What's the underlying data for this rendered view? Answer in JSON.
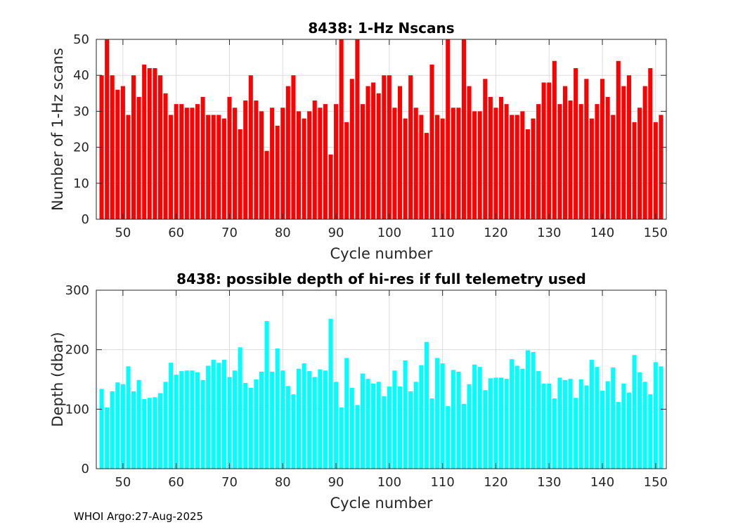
{
  "footer": "WHOI Argo:27-Aug-2025",
  "colors": {
    "nscans_bars": "#ff0000",
    "depth_bars": "#00ffff",
    "axis": "#262626",
    "grid": "#dcdcdc"
  },
  "chart_data": [
    {
      "type": "bar",
      "title": "8438: 1-Hz Nscans",
      "xlabel": "Cycle number",
      "ylabel": "Number of 1-Hz scans",
      "xlim": [
        45,
        152
      ],
      "ylim": [
        0,
        50
      ],
      "xticks": [
        50,
        60,
        70,
        80,
        90,
        100,
        110,
        120,
        130,
        140,
        150
      ],
      "yticks": [
        0,
        10,
        20,
        30,
        40,
        50
      ],
      "grid": true,
      "x_start": 46,
      "values": [
        40,
        50,
        40,
        36,
        37,
        29,
        40,
        34,
        43,
        42,
        42,
        40,
        35,
        29,
        32,
        32,
        31,
        31,
        32,
        34,
        29,
        29,
        29,
        28,
        34,
        31,
        25,
        33,
        40,
        33,
        30,
        19,
        31,
        26,
        31,
        37,
        40,
        30,
        28,
        30,
        33,
        31,
        32,
        18,
        32,
        50,
        27,
        39,
        50,
        32,
        37,
        38,
        35,
        40,
        40,
        31,
        37,
        28,
        40,
        31,
        29,
        24,
        43,
        29,
        28,
        50,
        31,
        31,
        50,
        37,
        30,
        30,
        39,
        34,
        31,
        34,
        32,
        29,
        29,
        30,
        25,
        28,
        32,
        38,
        38,
        44,
        32,
        37,
        33,
        42,
        32,
        39,
        28,
        32,
        39,
        34,
        29,
        44,
        37,
        40,
        27,
        31,
        37,
        42,
        27,
        29
      ]
    },
    {
      "type": "bar",
      "title": "8438: possible depth of hi-res if full telemetry used",
      "xlabel": "Cycle number",
      "ylabel": "Depth (dbar)",
      "xlim": [
        45,
        152
      ],
      "ylim": [
        0,
        300
      ],
      "xticks": [
        50,
        60,
        70,
        80,
        90,
        100,
        110,
        120,
        130,
        140,
        150
      ],
      "yticks": [
        0,
        100,
        200,
        300
      ],
      "grid": true,
      "x_start": 46,
      "values": [
        134,
        103,
        130,
        145,
        142,
        172,
        130,
        149,
        117,
        119,
        120,
        127,
        146,
        178,
        158,
        164,
        165,
        165,
        162,
        149,
        173,
        183,
        178,
        183,
        154,
        165,
        204,
        144,
        136,
        150,
        163,
        248,
        163,
        202,
        165,
        139,
        125,
        168,
        177,
        164,
        154,
        167,
        165,
        252,
        146,
        103,
        186,
        136,
        107,
        160,
        151,
        143,
        146,
        122,
        138,
        165,
        138,
        182,
        130,
        146,
        174,
        213,
        118,
        186,
        177,
        105,
        166,
        163,
        109,
        142,
        175,
        171,
        132,
        152,
        153,
        153,
        151,
        184,
        173,
        168,
        199,
        196,
        164,
        143,
        143,
        118,
        153,
        149,
        151,
        119,
        150,
        140,
        183,
        171,
        131,
        147,
        170,
        112,
        143,
        128,
        191,
        162,
        146,
        125,
        179,
        172
      ]
    }
  ]
}
